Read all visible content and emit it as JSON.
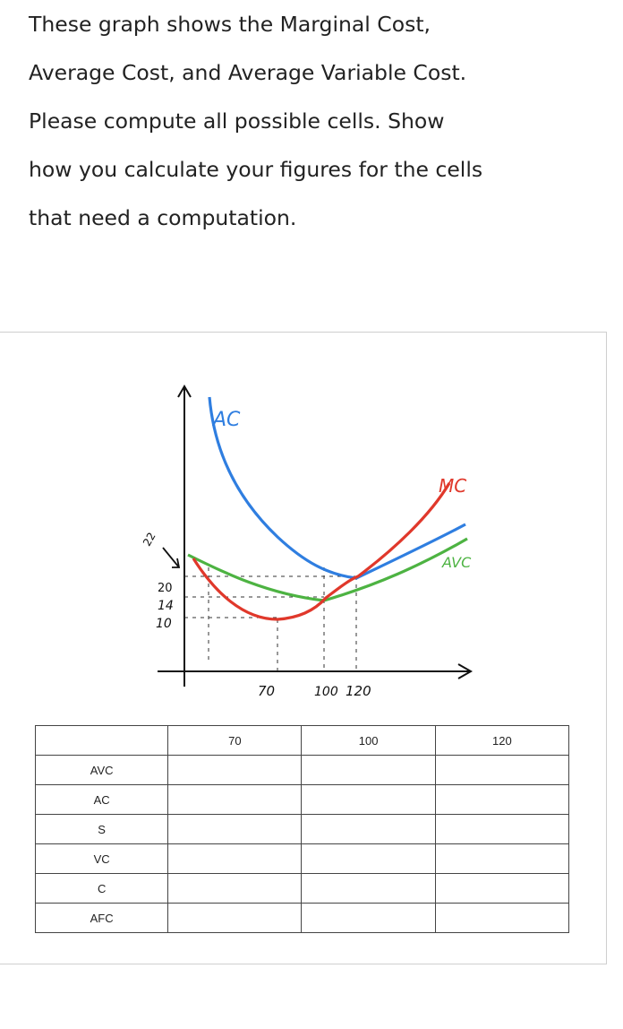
{
  "question": {
    "lines": [
      "These graph shows the Marginal Cost,",
      "Average Cost, and Average Variable Cost.",
      "Please compute all possible cells. Show",
      "how you calculate your figures for the cells",
      "that need a computation."
    ]
  },
  "graph": {
    "curve_labels": {
      "ac": "AC",
      "mc": "MC",
      "avc": "AVC"
    },
    "y_ticks": [
      "22",
      "20",
      "14",
      "10"
    ],
    "x_ticks": [
      "70",
      "100",
      "120"
    ],
    "colors": {
      "ac": "#2f7ee0",
      "mc": "#e0382b",
      "avc": "#4db342",
      "axis": "#111111"
    }
  },
  "table": {
    "columns": [
      "",
      "70",
      "100",
      "120"
    ],
    "rows": [
      {
        "label": "AVC",
        "cells": [
          "",
          "",
          ""
        ]
      },
      {
        "label": "AC",
        "cells": [
          "",
          "",
          ""
        ]
      },
      {
        "label": "S",
        "cells": [
          "",
          "",
          ""
        ]
      },
      {
        "label": "VC",
        "cells": [
          "",
          "",
          ""
        ]
      },
      {
        "label": "C",
        "cells": [
          "",
          "",
          ""
        ]
      },
      {
        "label": "AFC",
        "cells": [
          "",
          "",
          ""
        ]
      }
    ]
  }
}
